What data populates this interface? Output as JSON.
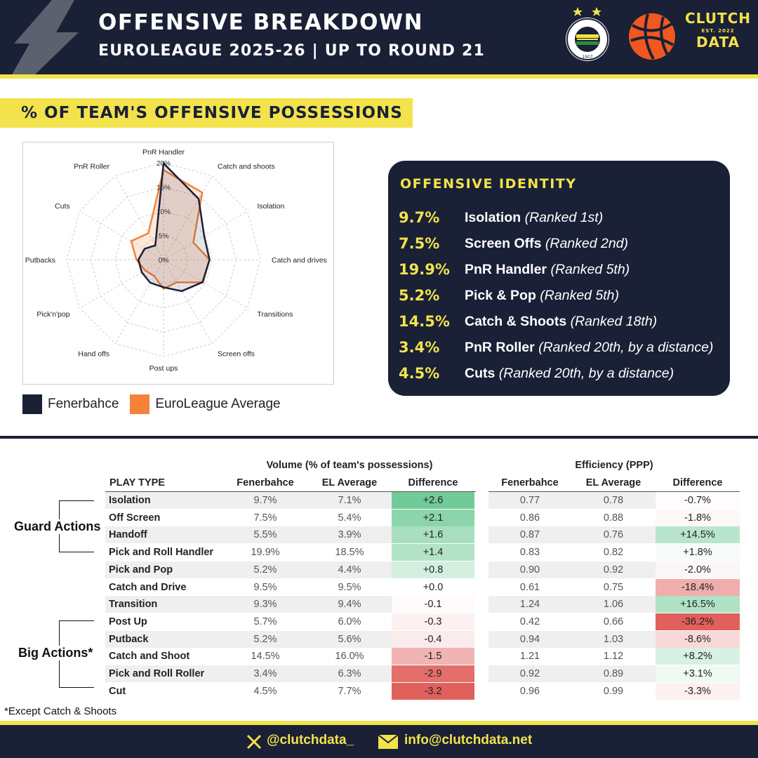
{
  "header": {
    "title": "OFFENSIVE BREAKDOWN",
    "subtitle": "EUROLEAGUE 2025-26 | UP TO ROUND 21",
    "fb_logo_text": "FENERBAHÇE SPOR KULÜBÜ",
    "fb_logo_year": "1907",
    "brand_line1": "CLUTCH",
    "brand_line2": "EST. 2022",
    "brand_line3": "DATA"
  },
  "section": {
    "title": "% OF TEAM'S OFFENSIVE POSSESSIONS"
  },
  "chart_data": [
    {
      "type": "radar",
      "axes": [
        "PnR Handler",
        "Catch and shoots",
        "Isolation",
        "Catch and drives",
        "Transitions",
        "Screen offs",
        "Post ups",
        "Hand offs",
        "Pick'n'pop",
        "Putbacks",
        "Cuts",
        "PnR Roller"
      ],
      "radial_ticks": [
        "0%",
        "5%",
        "10%",
        "15%",
        "20%"
      ],
      "rmax": 20,
      "series": [
        {
          "name": "Fenerbahce",
          "color": "#1a2036",
          "values": [
            19.9,
            14.5,
            9.7,
            9.5,
            9.3,
            7.5,
            5.7,
            5.5,
            5.2,
            5.2,
            4.5,
            3.4
          ]
        },
        {
          "name": "EuroLeague Average",
          "color": "#f4823a",
          "values": [
            18.5,
            16.0,
            7.1,
            9.5,
            9.4,
            5.4,
            6.0,
            3.9,
            4.4,
            5.6,
            7.7,
            6.3
          ]
        }
      ],
      "legend_position": "bottom-left"
    },
    {
      "type": "table",
      "volume_header": "Volume (% of team's possessions)",
      "efficiency_header": "Efficiency (PPP)",
      "columns": [
        "PLAY TYPE",
        "Fenerbahce",
        "EL Average",
        "Difference",
        "Fenerbahce",
        "EL Average",
        "Difference"
      ],
      "rows": [
        {
          "play": "Isolation",
          "v_fb": "9.7%",
          "v_el": "7.1%",
          "v_diff": "+2.6",
          "v_val": 2.6,
          "e_fb": "0.77",
          "e_el": "0.78",
          "e_diff": "-0.7%",
          "e_val": -0.7
        },
        {
          "play": "Off Screen",
          "v_fb": "7.5%",
          "v_el": "5.4%",
          "v_diff": "+2.1",
          "v_val": 2.1,
          "e_fb": "0.86",
          "e_el": "0.88",
          "e_diff": "-1.8%",
          "e_val": -1.8
        },
        {
          "play": "Handoff",
          "v_fb": "5.5%",
          "v_el": "3.9%",
          "v_diff": "+1.6",
          "v_val": 1.6,
          "e_fb": "0.87",
          "e_el": "0.76",
          "e_diff": "+14.5%",
          "e_val": 14.5
        },
        {
          "play": "Pick and Roll Handler",
          "v_fb": "19.9%",
          "v_el": "18.5%",
          "v_diff": "+1.4",
          "v_val": 1.4,
          "e_fb": "0.83",
          "e_el": "0.82",
          "e_diff": "+1.8%",
          "e_val": 1.8
        },
        {
          "play": "Pick and Pop",
          "v_fb": "5.2%",
          "v_el": "4.4%",
          "v_diff": "+0.8",
          "v_val": 0.8,
          "e_fb": "0.90",
          "e_el": "0.92",
          "e_diff": "-2.0%",
          "e_val": -2.0
        },
        {
          "play": "Catch and Drive",
          "v_fb": "9.5%",
          "v_el": "9.5%",
          "v_diff": "+0.0",
          "v_val": 0.0,
          "e_fb": "0.61",
          "e_el": "0.75",
          "e_diff": "-18.4%",
          "e_val": -18.4
        },
        {
          "play": "Transition",
          "v_fb": "9.3%",
          "v_el": "9.4%",
          "v_diff": "-0.1",
          "v_val": -0.1,
          "e_fb": "1.24",
          "e_el": "1.06",
          "e_diff": "+16.5%",
          "e_val": 16.5
        },
        {
          "play": "Post Up",
          "v_fb": "5.7%",
          "v_el": "6.0%",
          "v_diff": "-0.3",
          "v_val": -0.3,
          "e_fb": "0.42",
          "e_el": "0.66",
          "e_diff": "-36.2%",
          "e_val": -36.2
        },
        {
          "play": "Putback",
          "v_fb": "5.2%",
          "v_el": "5.6%",
          "v_diff": "-0.4",
          "v_val": -0.4,
          "e_fb": "0.94",
          "e_el": "1.03",
          "e_diff": "-8.6%",
          "e_val": -8.6
        },
        {
          "play": "Catch and Shoot",
          "v_fb": "14.5%",
          "v_el": "16.0%",
          "v_diff": "-1.5",
          "v_val": -1.5,
          "e_fb": "1.21",
          "e_el": "1.12",
          "e_diff": "+8.2%",
          "e_val": 8.2
        },
        {
          "play": "Pick and Roll Roller",
          "v_fb": "3.4%",
          "v_el": "6.3%",
          "v_diff": "-2.9",
          "v_val": -2.9,
          "e_fb": "0.92",
          "e_el": "0.89",
          "e_diff": "+3.1%",
          "e_val": 3.1
        },
        {
          "play": "Cut",
          "v_fb": "4.5%",
          "v_el": "7.7%",
          "v_diff": "-3.2",
          "v_val": -3.2,
          "e_fb": "0.96",
          "e_el": "0.99",
          "e_diff": "-3.3%",
          "e_val": -3.3
        }
      ]
    }
  ],
  "legend": {
    "fb": "Fenerbahce",
    "el": "EuroLeague Average",
    "fb_color": "#1a2036",
    "el_color": "#f4823a"
  },
  "identity": {
    "title": "OFFENSIVE IDENTITY",
    "rows": [
      {
        "pct": "9.7%",
        "label": "Isolation",
        "rank": "(Ranked 1st)"
      },
      {
        "pct": "7.5%",
        "label": "Screen Offs",
        "rank": "(Ranked 2nd)"
      },
      {
        "pct": "19.9%",
        "label": "PnR Handler",
        "rank": "(Ranked 5th)"
      },
      {
        "pct": "5.2%",
        "label": "Pick & Pop",
        "rank": "(Ranked 5th)"
      },
      {
        "pct": "14.5%",
        "label": "Catch & Shoots",
        "rank": "(Ranked 18th)"
      },
      {
        "pct": "3.4%",
        "label": "PnR Roller",
        "rank": "(Ranked 20th, by a distance)"
      },
      {
        "pct": "4.5%",
        "label": "Cuts",
        "rank": "(Ranked 20th, by a distance)"
      }
    ]
  },
  "groups": {
    "guard": "Guard Actions",
    "big": "Big Actions*"
  },
  "footnote": "*Except Catch & Shoots",
  "footer": {
    "twitter": "@clutchdata_",
    "email": "info@clutchdata.net",
    "twitter_icon": "x-logo-icon",
    "email_icon": "envelope-icon"
  },
  "colors": {
    "navy": "#1a2036",
    "yellow": "#f2e34c",
    "orange": "#f4823a",
    "positive": "#4fbf80",
    "negative": "#e0605c"
  }
}
